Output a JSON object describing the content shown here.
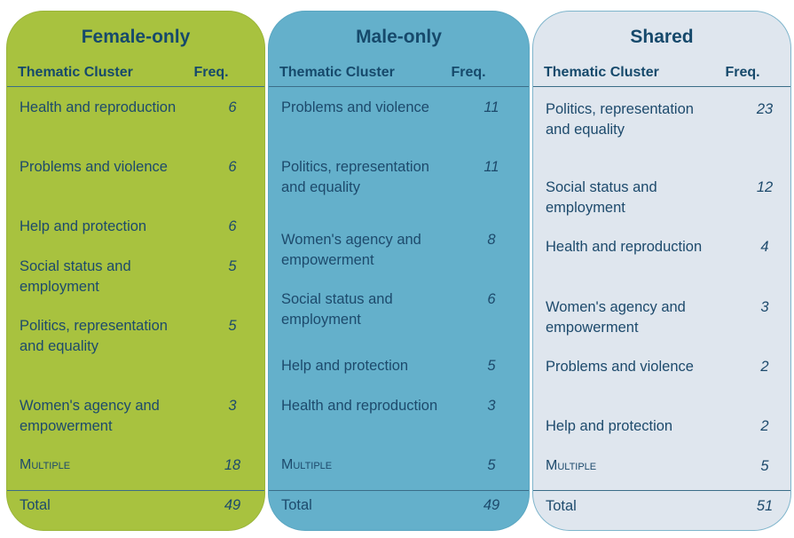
{
  "header": {
    "col_cluster": "Thematic Cluster",
    "col_freq": "Freq."
  },
  "panels": [
    {
      "title": "Female-only",
      "color": "#a8c23f",
      "rows": [
        {
          "label": "Health and reproduction",
          "freq": "6"
        },
        {
          "label": "Problems and violence",
          "freq": "6"
        },
        {
          "label": "Help and protection",
          "freq": "6"
        },
        {
          "label": "Social status and employment",
          "freq": "5"
        },
        {
          "label": "Politics, representation and equality",
          "freq": "5"
        },
        {
          "label": "Women's agency and empowerment",
          "freq": "3"
        },
        {
          "label": "Multiple",
          "freq": "18"
        }
      ],
      "total_label": "Total",
      "total": "49"
    },
    {
      "title": "Male-only",
      "color": "#64b0cb",
      "rows": [
        {
          "label": "Problems and violence",
          "freq": "11"
        },
        {
          "label": "Politics, representation and equality",
          "freq": "11"
        },
        {
          "label": "Women's agency and empowerment",
          "freq": "8"
        },
        {
          "label": "Social status and employment",
          "freq": "6"
        },
        {
          "label": "Help and protection",
          "freq": "5"
        },
        {
          "label": "Health and reproduction",
          "freq": "3"
        },
        {
          "label": "Multiple",
          "freq": "5"
        }
      ],
      "total_label": "Total",
      "total": "49"
    },
    {
      "title": "Shared",
      "color": "#dfe6ee",
      "rows": [
        {
          "label": "Politics, representation and equality",
          "freq": "23"
        },
        {
          "label": "Social status and employment",
          "freq": "12"
        },
        {
          "label": "Health and reproduction",
          "freq": "4"
        },
        {
          "label": "Women's agency and empowerment",
          "freq": "3"
        },
        {
          "label": "Problems and violence",
          "freq": "2"
        },
        {
          "label": "Help and protection",
          "freq": "2"
        },
        {
          "label": "Multiple",
          "freq": "5"
        }
      ],
      "total_label": "Total",
      "total": "51"
    }
  ]
}
